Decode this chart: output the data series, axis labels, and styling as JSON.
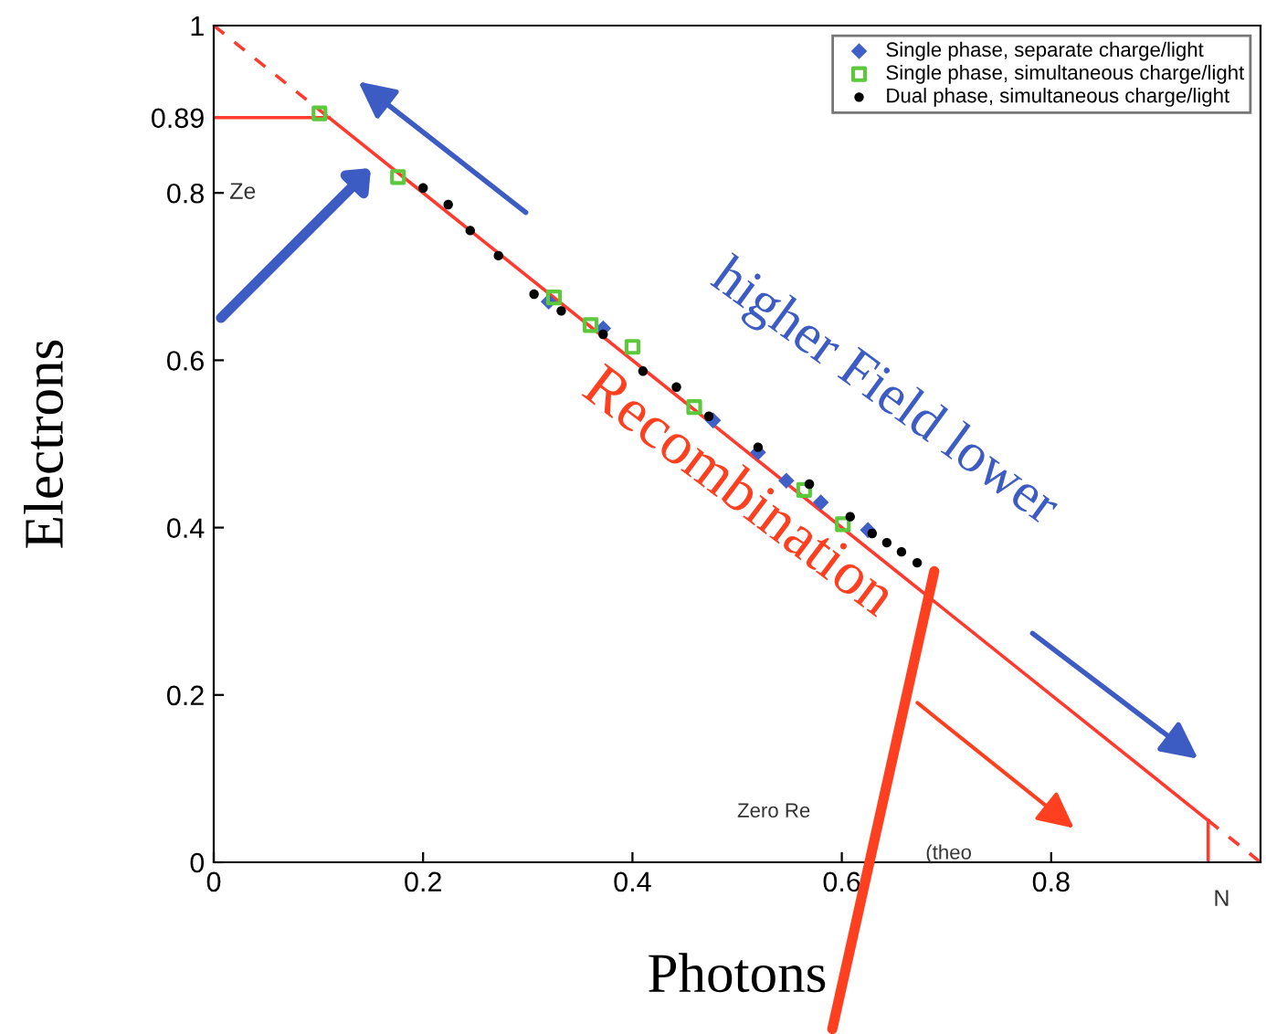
{
  "chart_data": {
    "type": "scatter",
    "xlabel": "Photons",
    "ylabel": "Electrons",
    "xlim": [
      0,
      1
    ],
    "ylim": [
      0,
      1
    ],
    "xticks": [
      0,
      0.2,
      0.4,
      0.6,
      0.8
    ],
    "yticks": [
      0,
      0.2,
      0.4,
      0.6,
      0.8,
      0.89,
      1
    ],
    "grid": false,
    "legend": "top right",
    "series": [
      {
        "type": "line",
        "color": "#ff3b2f",
        "line_style": "dashed",
        "x": [
          0,
          0.11
        ],
        "values": [
          1,
          0.89
        ]
      },
      {
        "type": "line",
        "color": "#ff3b2f",
        "line_style": "solid",
        "x": [
          0,
          0.11
        ],
        "values": [
          0.89,
          0.89
        ]
      },
      {
        "type": "line",
        "color": "#ff3b2f",
        "line_style": "solid",
        "x": [
          0.11,
          0.95
        ],
        "values": [
          0.89,
          0.05
        ]
      },
      {
        "type": "line",
        "color": "#ff3b2f",
        "line_style": "solid",
        "x": [
          0.95,
          0.95
        ],
        "values": [
          0,
          0.05
        ]
      },
      {
        "type": "line",
        "color": "#ff3b2f",
        "line_style": "dashed",
        "x": [
          0.95,
          1
        ],
        "values": [
          0.05,
          0
        ]
      },
      {
        "name": "Single phase, separate charge/light",
        "color": "#4060c8",
        "marker": "diamond",
        "x": [
          0.32,
          0.372,
          0.477,
          0.52,
          0.547,
          0.58,
          0.625
        ],
        "values": [
          0.67,
          0.638,
          0.528,
          0.49,
          0.456,
          0.43,
          0.397
        ]
      },
      {
        "name": "Single phase, simultaneous charge/light",
        "color": "#5cc83c",
        "marker": "square",
        "x": [
          0.101,
          0.176,
          0.325,
          0.36,
          0.4,
          0.459,
          0.564,
          0.601
        ],
        "values": [
          0.895,
          0.819,
          0.675,
          0.642,
          0.616,
          0.544,
          0.445,
          0.404
        ]
      },
      {
        "name": "Dual phase, simultaneous charge/light",
        "color": "#000000",
        "marker": "circle",
        "x": [
          0.2,
          0.224,
          0.245,
          0.272,
          0.306,
          0.332,
          0.372,
          0.41,
          0.442,
          0.473,
          0.52,
          0.569,
          0.608,
          0.629,
          0.643,
          0.657,
          0.672
        ],
        "values": [
          0.806,
          0.786,
          0.755,
          0.725,
          0.679,
          0.659,
          0.631,
          0.587,
          0.568,
          0.533,
          0.496,
          0.452,
          0.413,
          0.393,
          0.382,
          0.371,
          0.358
        ]
      }
    ],
    "annotations": [
      "higher Field lower",
      "Recombination",
      "Zero Re",
      "(theo",
      "Ze",
      "N"
    ]
  }
}
